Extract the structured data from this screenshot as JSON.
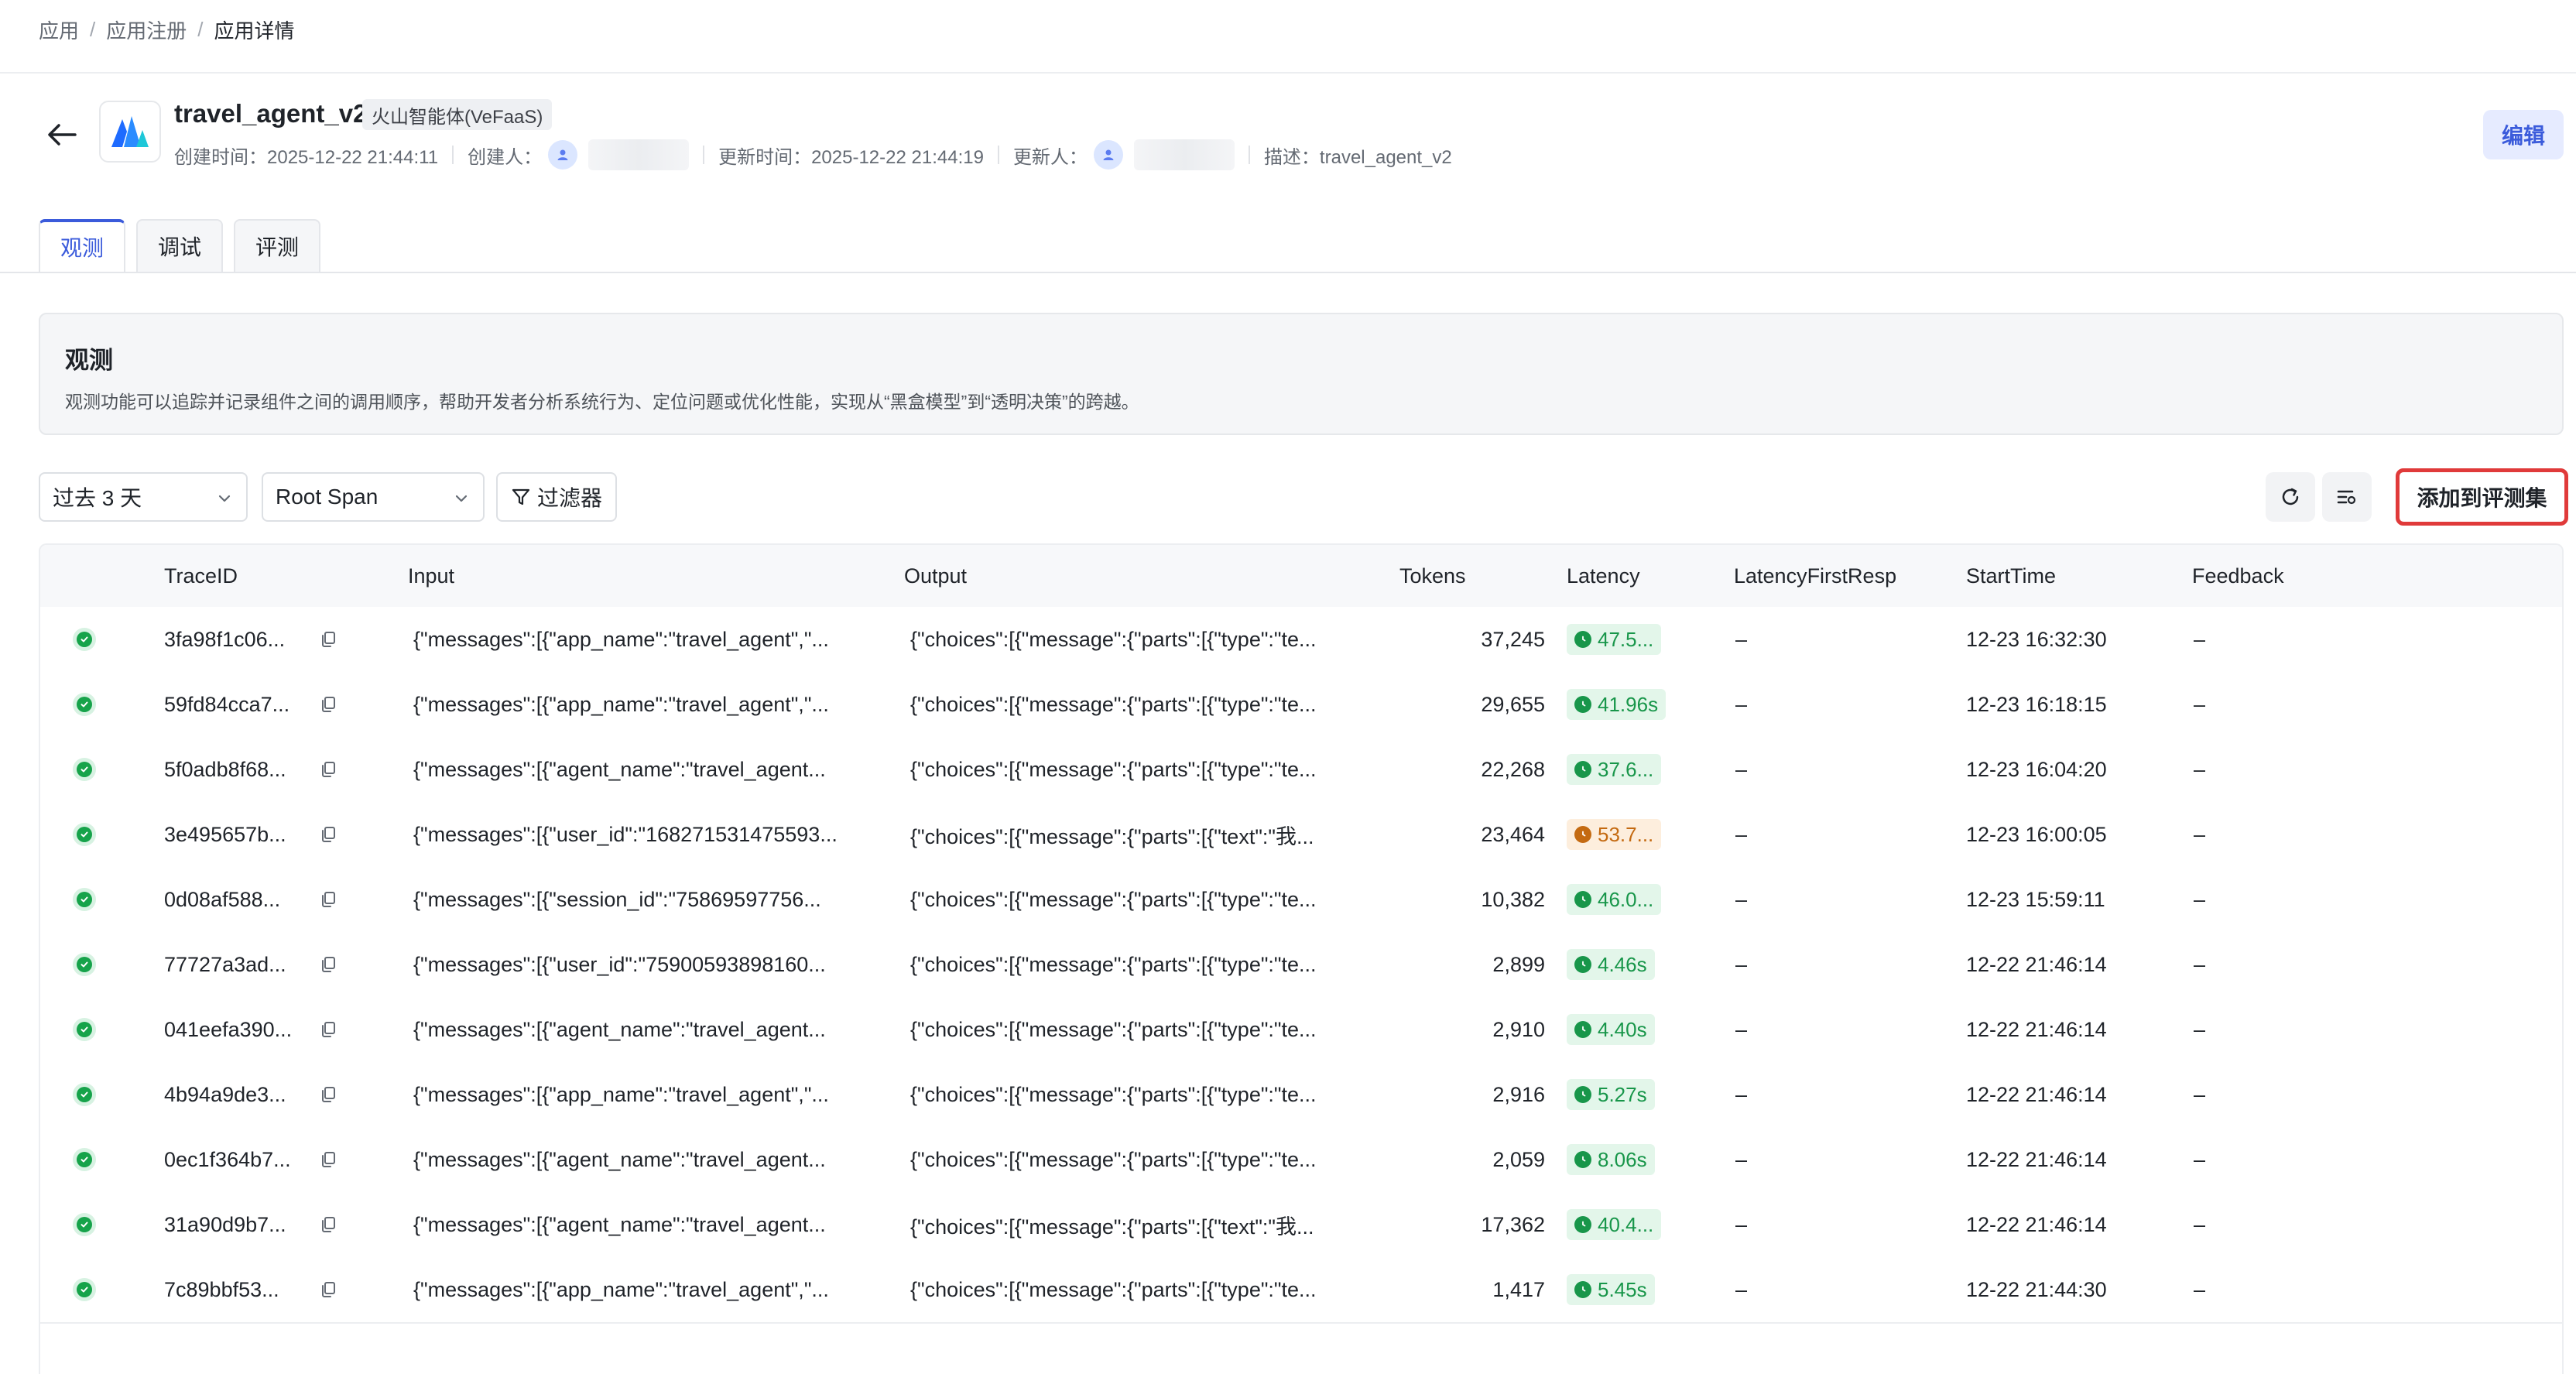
{
  "breadcrumb": {
    "items": [
      "应用",
      "应用注册",
      "应用详情"
    ]
  },
  "header": {
    "title": "travel_agent_v2",
    "type_badge": "火山智能体(VeFaaS)",
    "created_time": "创建时间：2025-12-22 21:44:11",
    "creator_label": "创建人：",
    "updated_time": "更新时间：2025-12-22 21:44:19",
    "updater_label": "更新人：",
    "description": "描述：travel_agent_v2",
    "edit_label": "编辑"
  },
  "tabs": [
    {
      "label": "观测",
      "active": true
    },
    {
      "label": "调试",
      "active": false
    },
    {
      "label": "评测",
      "active": false
    }
  ],
  "intro": {
    "title": "观测",
    "description": "观测功能可以追踪并记录组件之间的调用顺序，帮助开发者分析系统行为、定位问题或优化性能，实现从“黑盒模型”到“透明决策”的跨越。"
  },
  "toolbar": {
    "time_range": "过去 3 天",
    "span_type": "Root Span",
    "filter_label": "过滤器",
    "add_to_eval_label": "添加到评测集"
  },
  "table": {
    "columns": [
      "TraceID",
      "Input",
      "Output",
      "Tokens",
      "Latency",
      "LatencyFirstResp",
      "StartTime",
      "Feedback"
    ],
    "rows": [
      {
        "trace_id": "3fa98f1c06...",
        "input": "{\"messages\":[{\"app_name\":\"travel_agent\",\"...",
        "output": "{\"choices\":[{\"message\":{\"parts\":[{\"type\":\"te...",
        "tokens": "37,245",
        "latency": "47.5...",
        "latency_status": "green",
        "latency_first": "–",
        "start_time": "12-23 16:32:30",
        "feedback": "–"
      },
      {
        "trace_id": "59fd84cca7...",
        "input": "{\"messages\":[{\"app_name\":\"travel_agent\",\"...",
        "output": "{\"choices\":[{\"message\":{\"parts\":[{\"type\":\"te...",
        "tokens": "29,655",
        "latency": "41.96s",
        "latency_status": "green",
        "latency_first": "–",
        "start_time": "12-23 16:18:15",
        "feedback": "–"
      },
      {
        "trace_id": "5f0adb8f68...",
        "input": "{\"messages\":[{\"agent_name\":\"travel_agent...",
        "output": "{\"choices\":[{\"message\":{\"parts\":[{\"type\":\"te...",
        "tokens": "22,268",
        "latency": "37.6...",
        "latency_status": "green",
        "latency_first": "–",
        "start_time": "12-23 16:04:20",
        "feedback": "–"
      },
      {
        "trace_id": "3e495657b...",
        "input": "{\"messages\":[{\"user_id\":\"168271531475593...",
        "output": "{\"choices\":[{\"message\":{\"parts\":[{\"text\":\"我...",
        "tokens": "23,464",
        "latency": "53.7...",
        "latency_status": "orange",
        "latency_first": "–",
        "start_time": "12-23 16:00:05",
        "feedback": "–"
      },
      {
        "trace_id": "0d08af588...",
        "input": "{\"messages\":[{\"session_id\":\"75869597756...",
        "output": "{\"choices\":[{\"message\":{\"parts\":[{\"type\":\"te...",
        "tokens": "10,382",
        "latency": "46.0...",
        "latency_status": "green",
        "latency_first": "–",
        "start_time": "12-23 15:59:11",
        "feedback": "–"
      },
      {
        "trace_id": "77727a3ad...",
        "input": "{\"messages\":[{\"user_id\":\"75900593898160...",
        "output": "{\"choices\":[{\"message\":{\"parts\":[{\"type\":\"te...",
        "tokens": "2,899",
        "latency": "4.46s",
        "latency_status": "green",
        "latency_first": "–",
        "start_time": "12-22 21:46:14",
        "feedback": "–"
      },
      {
        "trace_id": "041eefa390...",
        "input": "{\"messages\":[{\"agent_name\":\"travel_agent...",
        "output": "{\"choices\":[{\"message\":{\"parts\":[{\"type\":\"te...",
        "tokens": "2,910",
        "latency": "4.40s",
        "latency_status": "green",
        "latency_first": "–",
        "start_time": "12-22 21:46:14",
        "feedback": "–"
      },
      {
        "trace_id": "4b94a9de3...",
        "input": "{\"messages\":[{\"app_name\":\"travel_agent\",\"...",
        "output": "{\"choices\":[{\"message\":{\"parts\":[{\"type\":\"te...",
        "tokens": "2,916",
        "latency": "5.27s",
        "latency_status": "green",
        "latency_first": "–",
        "start_time": "12-22 21:46:14",
        "feedback": "–"
      },
      {
        "trace_id": "0ec1f364b7...",
        "input": "{\"messages\":[{\"agent_name\":\"travel_agent...",
        "output": "{\"choices\":[{\"message\":{\"parts\":[{\"type\":\"te...",
        "tokens": "2,059",
        "latency": "8.06s",
        "latency_status": "green",
        "latency_first": "–",
        "start_time": "12-22 21:46:14",
        "feedback": "–"
      },
      {
        "trace_id": "31a90d9b7...",
        "input": "{\"messages\":[{\"agent_name\":\"travel_agent...",
        "output": "{\"choices\":[{\"message\":{\"parts\":[{\"text\":\"我...",
        "tokens": "17,362",
        "latency": "40.4...",
        "latency_status": "green",
        "latency_first": "–",
        "start_time": "12-22 21:46:14",
        "feedback": "–"
      },
      {
        "trace_id": "7c89bbf53...",
        "input": "{\"messages\":[{\"app_name\":\"travel_agent\",\"...",
        "output": "{\"choices\":[{\"message\":{\"parts\":[{\"type\":\"te...",
        "tokens": "1,417",
        "latency": "5.45s",
        "latency_status": "green",
        "latency_first": "–",
        "start_time": "12-22 21:44:30",
        "feedback": "–"
      }
    ]
  },
  "colors": {
    "accent": "#3b5bdb",
    "success": "#16a34a",
    "warning": "#c46a11",
    "highlight_border": "#e03a3a"
  },
  "icons": [
    "arrow-left-icon",
    "app-logo-icon",
    "user-icon",
    "chevron-down-icon",
    "filter-icon",
    "refresh-icon",
    "column-settings-icon",
    "copy-icon",
    "check-circle-icon",
    "clock-icon"
  ]
}
